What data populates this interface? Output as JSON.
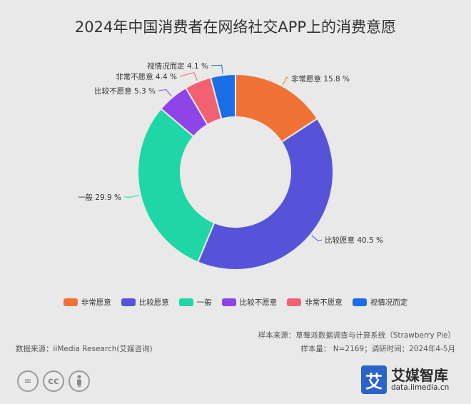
{
  "title": "2024年中国消费者在网络社交APP上的消费意愿",
  "chart_data": {
    "type": "pie",
    "donut": true,
    "title": "2024年中国消费者在网络社交APP上的消费意愿",
    "legend_position": "bottom",
    "unit": "%",
    "slices": [
      {
        "label": "非常愿意",
        "value": 15.8,
        "display": "15.8 %",
        "color": "#f07236"
      },
      {
        "label": "比较愿意",
        "value": 40.5,
        "display": "40.5 %",
        "color": "#5753d9"
      },
      {
        "label": "一般",
        "value": 29.9,
        "display": "29.9 %",
        "color": "#1ed6a6"
      },
      {
        "label": "比较不愿意",
        "value": 5.3,
        "display": "5.3 %",
        "color": "#8e44e6"
      },
      {
        "label": "非常不愿意",
        "value": 4.4,
        "display": "4.4 %",
        "color": "#f26171"
      },
      {
        "label": "视情况而定",
        "value": 4.1,
        "display": "4.1 %",
        "color": "#1a6ee8"
      }
    ]
  },
  "source": {
    "sample_source": "样本来源：草莓派数据调查与计算系统（Strawberry Pie）",
    "sample_size": "样本量： N=2169；调研时间：2024年4-5月",
    "data_source": "数据来源：iiMedia Research(艾媒咨询)"
  },
  "brand": {
    "logo_char": "艾",
    "name": "艾媒智库",
    "url": "data.iimedia.cn"
  },
  "license_icons": [
    "=",
    "cc",
    "i"
  ]
}
